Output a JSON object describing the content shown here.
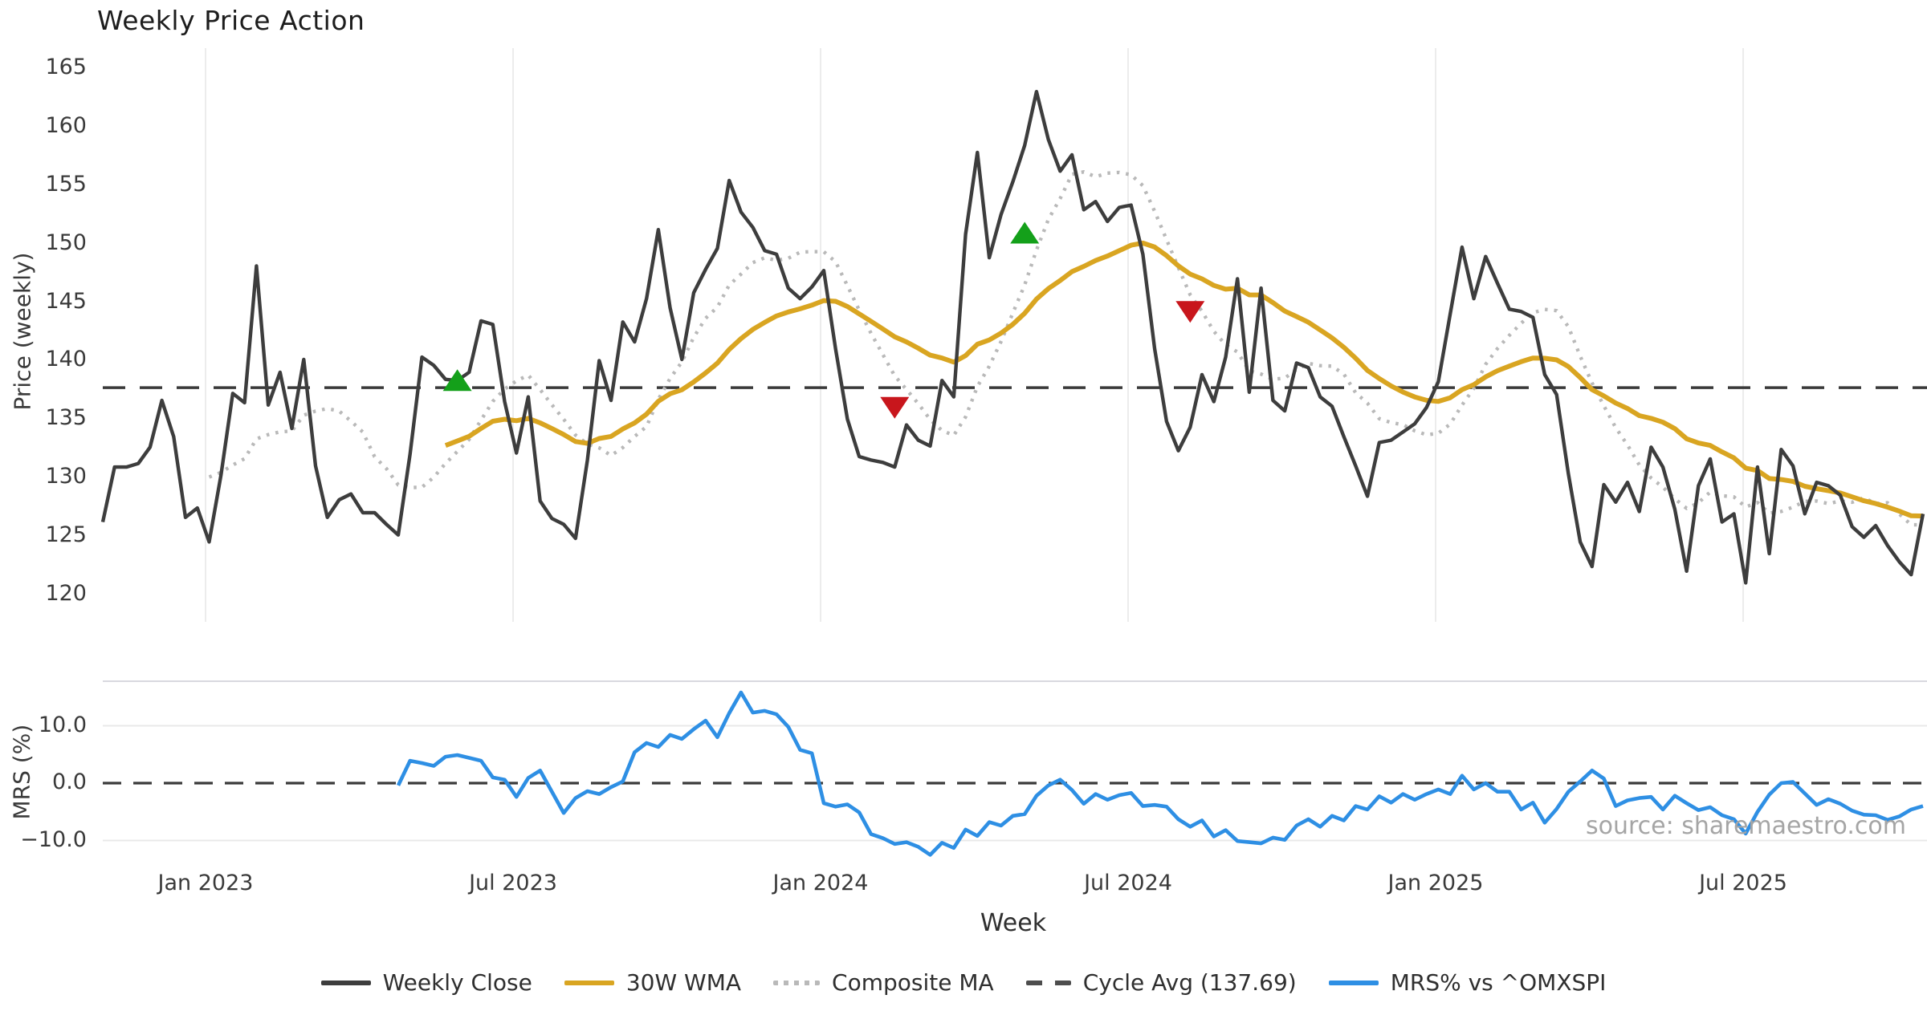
{
  "title": "Weekly Price Action",
  "price_axis_label": "Price (weekly)",
  "mrs_axis_label": "MRS (%)",
  "x_axis_label": "Week",
  "source_text": "source: sharemaestro.com",
  "colors": {
    "close": "#3d3d3d",
    "wma": "#d9a521",
    "composite": "#b9b9b9",
    "cycle_avg": "#3a3a3a",
    "mrs": "#2e8fe4",
    "buy_marker": "#14a01a",
    "sell_marker": "#c8161c",
    "gridline": "#ececec",
    "mrs_gridline": "#e9e9e9",
    "panel_border": "#d9d9df",
    "tick_text": "#3a3a3a",
    "watermark": "#a5a5a5"
  },
  "legend": {
    "items": [
      {
        "label": "Weekly Close",
        "style": "solid",
        "color": "#3d3d3d"
      },
      {
        "label": "30W WMA",
        "style": "solid",
        "color": "#d9a521"
      },
      {
        "label": "Composite MA",
        "style": "dotted",
        "color": "#b9b9b9"
      },
      {
        "label": "Cycle Avg (137.69)",
        "style": "dashed",
        "color": "#4d4d4d"
      },
      {
        "label": "MRS% vs ^OMXSPI",
        "style": "solid",
        "color": "#2e8fe4"
      }
    ]
  },
  "chart_data": {
    "type": "line",
    "title": "Weekly Price Action",
    "xlabel": "Week",
    "x_tick_labels": [
      "Jan 2023",
      "Jul 2023",
      "Jan 2024",
      "Jul 2024",
      "Jan 2025",
      "Jul 2025"
    ],
    "grid": "vertical-on-price-panel, horizontal-on-mrs-panel",
    "legend_position": "bottom-center",
    "panels": [
      {
        "name": "price",
        "ylabel": "Price (weekly)",
        "ylim": [
          118.5,
          166.5
        ],
        "y_ticks": [
          165,
          160,
          155,
          150,
          145,
          140,
          135,
          130,
          125,
          120
        ],
        "cycle_avg": 137.69,
        "weekly_close": [
          126.2,
          130.9,
          130.9,
          131.2,
          132.6,
          136.6,
          133.5,
          126.6,
          127.4,
          124.5,
          130.2,
          137.2,
          136.4,
          148.1,
          136.2,
          139.0,
          134.2,
          140.1,
          131.0,
          126.6,
          128.1,
          128.6,
          127.0,
          127.0,
          126.0,
          125.1,
          132.0,
          140.3,
          139.6,
          138.4,
          138.3,
          139.0,
          143.4,
          143.1,
          136.5,
          132.1,
          136.9,
          128.0,
          126.5,
          126.0,
          124.8,
          131.5,
          140.0,
          136.6,
          143.3,
          141.6,
          145.3,
          151.2,
          144.5,
          140.1,
          145.8,
          147.8,
          149.6,
          155.4,
          152.7,
          151.4,
          149.4,
          149.1,
          146.2,
          145.3,
          146.3,
          147.7,
          141.0,
          135.0,
          131.8,
          131.5,
          131.3,
          130.9,
          134.5,
          133.2,
          132.7,
          138.3,
          136.9,
          150.8,
          157.8,
          148.8,
          152.5,
          155.3,
          158.4,
          163.0,
          158.9,
          156.2,
          157.6,
          152.9,
          153.6,
          151.9,
          153.1,
          153.3,
          149.1,
          141.0,
          134.8,
          132.3,
          134.3,
          138.8,
          136.5,
          140.3,
          147.0,
          137.3,
          146.2,
          136.6,
          135.7,
          139.8,
          139.4,
          136.9,
          136.1,
          133.5,
          131.0,
          128.4,
          133.0,
          133.2,
          133.9,
          134.6,
          136.0,
          138.2,
          144.0,
          149.7,
          145.3,
          148.9,
          146.6,
          144.4,
          144.2,
          143.7,
          138.8,
          137.1,
          130.3,
          124.5,
          122.4,
          129.4,
          127.9,
          129.6,
          127.1,
          132.6,
          130.9,
          127.3,
          122.0,
          129.3,
          131.6,
          126.2,
          126.9,
          121.0,
          130.9,
          123.5,
          132.4,
          131.0,
          126.9,
          129.6,
          129.3,
          128.5,
          125.8,
          124.9,
          125.9,
          124.2,
          122.8,
          121.7,
          126.9
        ],
        "wma_30w": "derived: 30-week linear-weighted MA of weekly_close (gold line)",
        "composite_ma": "derived: 10-week SMA of weekly_close (dotted line)",
        "buy_markers": [
          {
            "week": 30,
            "price": 138.3
          },
          {
            "week": 78,
            "price": 150.9
          }
        ],
        "sell_markers": [
          {
            "week": 67,
            "price": 136.0
          },
          {
            "week": 92,
            "price": 144.2
          }
        ]
      },
      {
        "name": "mrs",
        "ylabel": "MRS (%)",
        "ylim": [
          -14.3,
          17.9
        ],
        "y_ticks": [
          "10.0",
          "0.0",
          "−10.0"
        ],
        "y_tick_values": [
          10,
          0,
          -10
        ],
        "zero_line": 0.0,
        "start_week": 25,
        "mrs_values": [
          -0.4,
          3.9,
          3.5,
          3.0,
          4.6,
          4.9,
          4.4,
          3.9,
          1.0,
          0.6,
          -2.4,
          0.9,
          2.2,
          -1.5,
          -5.2,
          -2.6,
          -1.4,
          -1.9,
          -0.7,
          0.3,
          5.4,
          7.0,
          6.3,
          8.4,
          7.7,
          9.4,
          10.9,
          8.0,
          12.2,
          15.8,
          12.3,
          12.6,
          12.0,
          9.8,
          5.8,
          5.2,
          -3.5,
          -4.1,
          -3.7,
          -5.1,
          -8.9,
          -9.6,
          -10.6,
          -10.3,
          -11.1,
          -12.5,
          -10.4,
          -11.3,
          -8.1,
          -9.2,
          -6.8,
          -7.4,
          -5.7,
          -5.4,
          -2.2,
          -0.4,
          0.6,
          -1.2,
          -3.6,
          -1.9,
          -2.9,
          -2.1,
          -1.7,
          -4.0,
          -3.8,
          -4.1,
          -6.3,
          -7.6,
          -6.5,
          -9.3,
          -8.2,
          -10.1,
          -10.3,
          -10.5,
          -9.5,
          -9.9,
          -7.4,
          -6.3,
          -7.6,
          -5.7,
          -6.5,
          -4.0,
          -4.6,
          -2.3,
          -3.4,
          -1.9,
          -2.9,
          -1.9,
          -1.1,
          -1.9,
          1.3,
          -1.1,
          0.0,
          -1.5,
          -1.5,
          -4.6,
          -3.4,
          -6.9,
          -4.5,
          -1.5,
          0.3,
          2.2,
          0.8,
          -4.0,
          -3.0,
          -2.6,
          -2.4,
          -4.6,
          -2.2,
          -3.5,
          -4.7,
          -4.2,
          -5.6,
          -6.3,
          -8.8,
          -5.0,
          -2.0,
          0.0,
          0.2,
          -1.8,
          -3.8,
          -2.8,
          -3.6,
          -4.8,
          -5.5,
          -5.6,
          -6.4,
          -5.8,
          -4.6,
          -4.0
        ]
      }
    ]
  }
}
